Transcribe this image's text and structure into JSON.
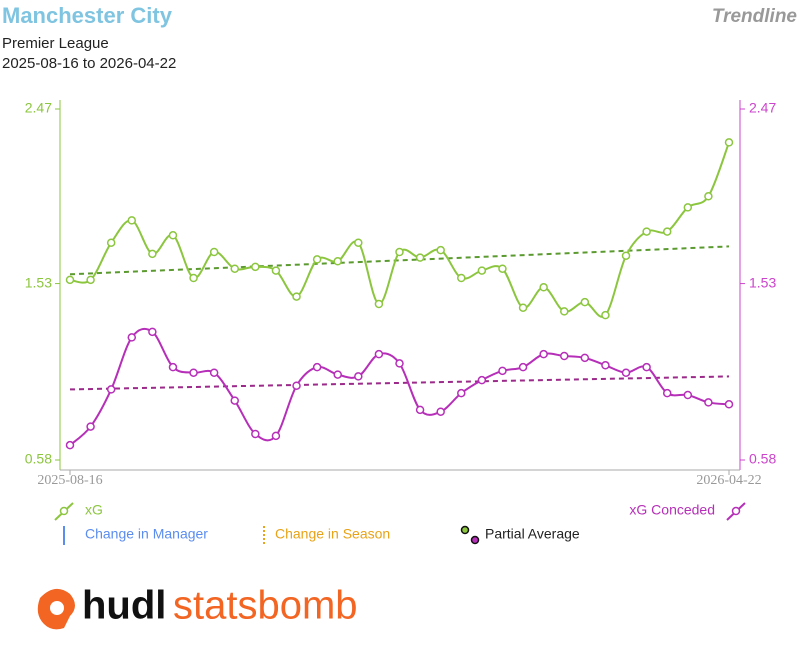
{
  "title": "Manchester City",
  "badge": "Trendline",
  "competition": "Premier League",
  "date_range": "2025-08-16 to 2026-04-22",
  "chart_data": {
    "type": "line",
    "x": [
      "2025-08-16",
      null,
      null,
      null,
      null,
      null,
      null,
      null,
      null,
      null,
      null,
      null,
      null,
      null,
      null,
      null,
      null,
      null,
      null,
      null,
      null,
      null,
      null,
      null,
      null,
      null,
      null,
      null,
      null,
      null,
      null,
      null,
      "2026-04-22"
    ],
    "ylim": [
      0.58,
      2.47
    ],
    "yticks": [
      0.58,
      1.53,
      2.47
    ],
    "ytick_color": "#8cc63f",
    "y2lim": [
      0.58,
      2.47
    ],
    "y2ticks": [
      0.58,
      1.53,
      2.47
    ],
    "y2tick_color": "#cc44cc",
    "series": [
      {
        "name": "xG",
        "color": "#8cc63f",
        "trend_color": "#5b9a2f",
        "values": [
          1.55,
          1.55,
          1.75,
          1.87,
          1.69,
          1.79,
          1.56,
          1.7,
          1.61,
          1.62,
          1.6,
          1.46,
          1.66,
          1.65,
          1.75,
          1.42,
          1.7,
          1.67,
          1.71,
          1.56,
          1.6,
          1.61,
          1.4,
          1.51,
          1.38,
          1.43,
          1.36,
          1.68,
          1.81,
          1.81,
          1.94,
          2.0,
          2.29
        ],
        "trend": [
          1.58,
          1.73
        ]
      },
      {
        "name": "xG Conceded",
        "color": "#b62fb8",
        "trend_color": "#9c2a8a",
        "axis": "y2",
        "values": [
          0.66,
          0.76,
          0.96,
          1.24,
          1.27,
          1.08,
          1.05,
          1.05,
          0.9,
          0.72,
          0.71,
          0.98,
          1.08,
          1.04,
          1.03,
          1.15,
          1.1,
          0.85,
          0.84,
          0.94,
          1.01,
          1.06,
          1.08,
          1.15,
          1.14,
          1.13,
          1.09,
          1.05,
          1.08,
          0.94,
          0.93,
          0.89,
          0.88
        ],
        "trend": [
          0.96,
          1.03
        ]
      }
    ],
    "markers": [
      {
        "name": "Change in Manager",
        "color": "#5b8def"
      },
      {
        "name": "Change in Season",
        "color": "#e8a317"
      },
      {
        "name": "Partial Average",
        "color": "#222222"
      }
    ]
  },
  "logo": [
    "hudl",
    "statsbomb"
  ]
}
